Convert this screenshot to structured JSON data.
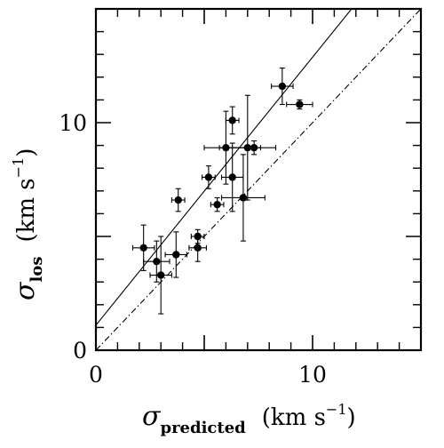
{
  "chart_data": {
    "type": "scatter",
    "x_axis": {
      "symbol": "σ",
      "subscript": "predicted",
      "unit_open": "(km s",
      "unit_sup": "−1",
      "unit_close": ")",
      "range": [
        0,
        15
      ],
      "tick_labels": [
        "0",
        "10"
      ],
      "major_ticks": [
        0,
        5,
        10,
        15
      ],
      "minor_ticks": [
        1,
        2,
        3,
        4,
        6,
        7,
        8,
        9,
        11,
        12,
        13,
        14
      ]
    },
    "y_axis": {
      "symbol": "σ",
      "subscript": "los",
      "unit_open": "(km s",
      "unit_sup": "−1",
      "unit_close": ")",
      "range": [
        0,
        15
      ],
      "tick_labels": [
        "0",
        "10"
      ],
      "major_ticks": [
        0,
        5,
        10,
        15
      ],
      "minor_ticks": [
        1,
        2,
        3,
        4,
        6,
        7,
        8,
        9,
        11,
        12,
        13,
        14
      ]
    },
    "points": [
      {
        "x": 2.2,
        "y": 4.5,
        "xerr": 0.5,
        "yerr": 1.0
      },
      {
        "x": 2.8,
        "y": 3.9,
        "xerr": 0.6,
        "yerr": 0.9
      },
      {
        "x": 3.0,
        "y": 3.3,
        "xerr": 0.5,
        "yerr": 1.7
      },
      {
        "x": 3.7,
        "y": 4.2,
        "xerr": 0.5,
        "yerr": 1.0
      },
      {
        "x": 3.8,
        "y": 6.6,
        "xerr": 0.3,
        "yerr": 0.5
      },
      {
        "x": 4.7,
        "y": 4.5,
        "xerr": 0.4,
        "yerr": 0.6
      },
      {
        "x": 4.7,
        "y": 5.0,
        "xerr": 0.3,
        "yerr": 0.3
      },
      {
        "x": 5.2,
        "y": 7.6,
        "xerr": 0.3,
        "yerr": 0.5
      },
      {
        "x": 5.6,
        "y": 6.4,
        "xerr": 0.3,
        "yerr": 0.3
      },
      {
        "x": 6.0,
        "y": 8.9,
        "xerr": 1.0,
        "yerr": 1.6
      },
      {
        "x": 6.3,
        "y": 10.1,
        "xerr": 0.3,
        "yerr": 0.6
      },
      {
        "x": 6.3,
        "y": 7.6,
        "xerr": 0.5,
        "yerr": 1.5
      },
      {
        "x": 6.8,
        "y": 6.7,
        "xerr": 1.0,
        "yerr": 1.9
      },
      {
        "x": 7.0,
        "y": 8.9,
        "xerr": 1.3,
        "yerr": 2.3
      },
      {
        "x": 7.3,
        "y": 8.9,
        "xerr": 0.3,
        "yerr": 0.3
      },
      {
        "x": 8.6,
        "y": 11.6,
        "xerr": 0.5,
        "yerr": 0.8
      },
      {
        "x": 9.4,
        "y": 10.8,
        "xerr": 0.6,
        "yerr": 0.2
      }
    ],
    "lines": [
      {
        "style": "solid",
        "x": [
          0,
          11.8
        ],
        "y": [
          1.1,
          15.0
        ]
      },
      {
        "style": "dash-dot",
        "x": [
          0,
          15
        ],
        "y": [
          0,
          15
        ]
      }
    ],
    "grid": false,
    "legend": "none"
  }
}
